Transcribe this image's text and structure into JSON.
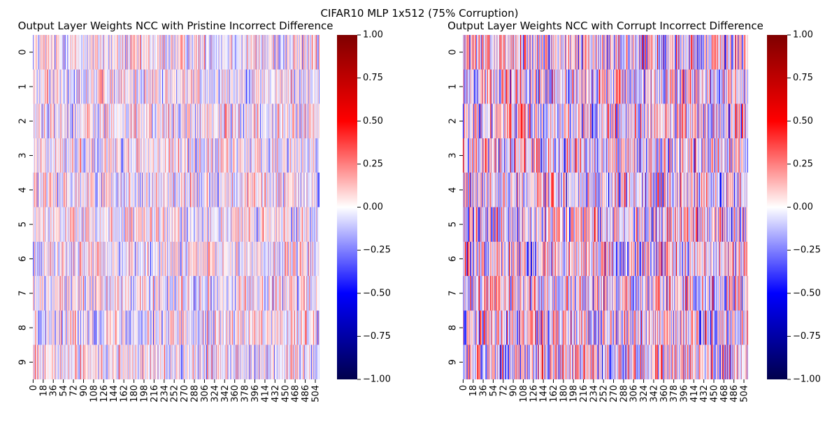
{
  "figure": {
    "suptitle": "CIFAR10 MLP 1x512 (75% Corruption)"
  },
  "colors": {
    "colormap": "seismic",
    "cmap_stops": [
      "#00004c",
      "#0000ff",
      "#ffffff",
      "#ff0000",
      "#7f0000"
    ]
  },
  "chart_data": [
    {
      "type": "heatmap",
      "title": "Output Layer Weights NCC with Pristine Incorrect Difference",
      "xlabel": "",
      "ylabel": "",
      "rows": [
        "0",
        "1",
        "2",
        "3",
        "4",
        "5",
        "6",
        "7",
        "8",
        "9"
      ],
      "n_cols": 512,
      "x_tick_labels": [
        "0",
        "18",
        "36",
        "54",
        "72",
        "90",
        "108",
        "126",
        "144",
        "162",
        "180",
        "198",
        "216",
        "234",
        "252",
        "270",
        "288",
        "306",
        "324",
        "342",
        "360",
        "378",
        "396",
        "414",
        "432",
        "450",
        "468",
        "486",
        "504"
      ],
      "vmin": -1.0,
      "vmax": 1.0,
      "colorbar_ticks": [
        "1.00",
        "0.75",
        "0.50",
        "0.25",
        "0.00",
        "−0.25",
        "−0.50",
        "−0.75",
        "−1.00"
      ],
      "value_amplitude": 0.28,
      "values_note": "Dense 10x512 matrix of small values mostly in [-0.35, 0.35]; individual cells not labeled."
    },
    {
      "type": "heatmap",
      "title": "Output Layer Weights NCC with Corrupt Incorrect Difference",
      "xlabel": "",
      "ylabel": "",
      "rows": [
        "0",
        "1",
        "2",
        "3",
        "4",
        "5",
        "6",
        "7",
        "8",
        "9"
      ],
      "n_cols": 512,
      "x_tick_labels": [
        "0",
        "18",
        "36",
        "54",
        "72",
        "90",
        "108",
        "126",
        "144",
        "162",
        "180",
        "198",
        "216",
        "234",
        "252",
        "270",
        "288",
        "306",
        "324",
        "342",
        "360",
        "378",
        "396",
        "414",
        "432",
        "450",
        "468",
        "486",
        "504"
      ],
      "vmin": -1.0,
      "vmax": 1.0,
      "colorbar_ticks": [
        "1.00",
        "0.75",
        "0.50",
        "0.25",
        "0.00",
        "−0.25",
        "−0.50",
        "−0.75",
        "−1.00"
      ],
      "value_amplitude": 0.45,
      "values_note": "Dense 10x512 matrix of values mostly in [-0.6, 0.6]; individual cells not labeled."
    }
  ]
}
